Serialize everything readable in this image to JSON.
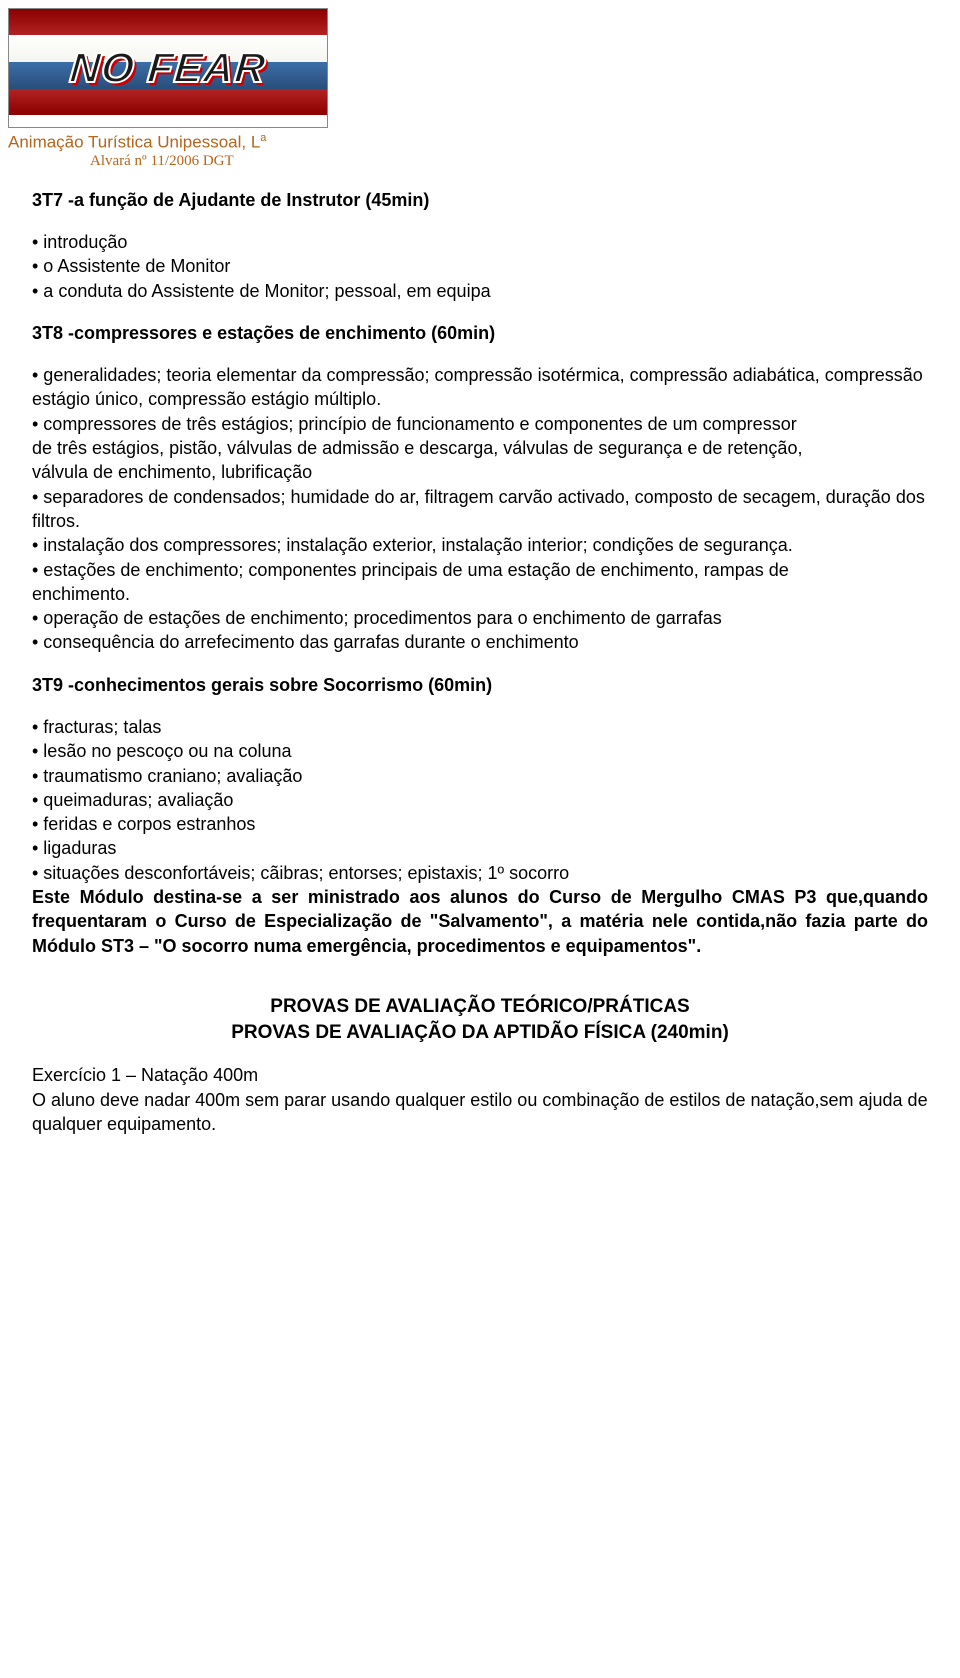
{
  "banner": {
    "text": "NO FEAR"
  },
  "company": {
    "name_html_pre": "Animação Turística Unipessoal, L",
    "name_sup": "a",
    "alvara": "Alvará nº 11/2006 DGT"
  },
  "s3t7": {
    "title": "3T7 -a função de Ajudante de Instrutor (45min)",
    "items": [
      "• introdução",
      "• o Assistente de Monitor",
      "• a conduta do Assistente de Monitor; pessoal, em equipa"
    ]
  },
  "s3t8": {
    "title": "3T8 -compressores e estações de enchimento (60min)",
    "items": [
      "• generalidades; teoria elementar da compressão; compressão isotérmica, compressão adiabática, compressão estágio único, compressão estágio múltiplo.",
      "• compressores de três estágios; princípio de funcionamento e componentes de um compressor",
      "de três estágios, pistão, válvulas de admissão e descarga, válvulas de segurança e de retenção,",
      "válvula de enchimento, lubrificação",
      "• separadores de condensados; humidade do ar, filtragem carvão activado, composto de secagem, duração dos filtros.",
      "• instalação dos compressores; instalação exterior, instalação interior; condições de segurança.",
      "• estações de enchimento; componentes principais de uma estação de enchimento, rampas de",
      "enchimento.",
      "• operação de estações de enchimento; procedimentos para o enchimento de garrafas",
      "• consequência do arrefecimento das garrafas durante o enchimento"
    ]
  },
  "s3t9": {
    "title": "3T9 -conhecimentos gerais sobre Socorrismo (60min)",
    "items": [
      "• fracturas; talas",
      "• lesão no pescoço ou na coluna",
      "• traumatismo craniano; avaliação",
      "• queimaduras; avaliação",
      "• feridas e corpos estranhos",
      "• ligaduras",
      "• situações desconfortáveis; cãibras; entorses; epistaxis; 1º socorro"
    ],
    "bold_note": "Este Módulo destina-se a ser ministrado aos alunos do Curso de Mergulho CMAS P3 que,quando frequentaram o Curso de Especialização de \"Salvamento\", a matéria nele contida,não fazia parte do Módulo ST3 – \"O socorro numa emergência, procedimentos e equipamentos\"."
  },
  "eval": {
    "line1": "PROVAS DE AVALIAÇÃO TEÓRICO/PRÁTICAS",
    "line2": "PROVAS DE AVALIAÇÃO DA APTIDÃO FÍSICA (240min)"
  },
  "ex1": {
    "title": "Exercício 1 – Natação 400m",
    "body": "O aluno deve nadar 400m sem parar usando qualquer estilo ou combinação de estilos de natação,sem ajuda de qualquer equipamento."
  },
  "colors": {
    "text": "#000000",
    "company": "#b5651d",
    "bg": "#ffffff"
  }
}
